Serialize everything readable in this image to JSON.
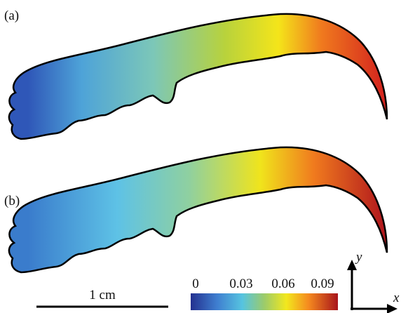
{
  "panels": [
    {
      "label": "(a)"
    },
    {
      "label": "(b)"
    }
  ],
  "scale_bar": {
    "label": "1 cm"
  },
  "colorbar": {
    "ticks": [
      "0",
      "0.03",
      "0.06",
      "0.09"
    ]
  },
  "axes": {
    "y": "y",
    "x": "x"
  }
}
